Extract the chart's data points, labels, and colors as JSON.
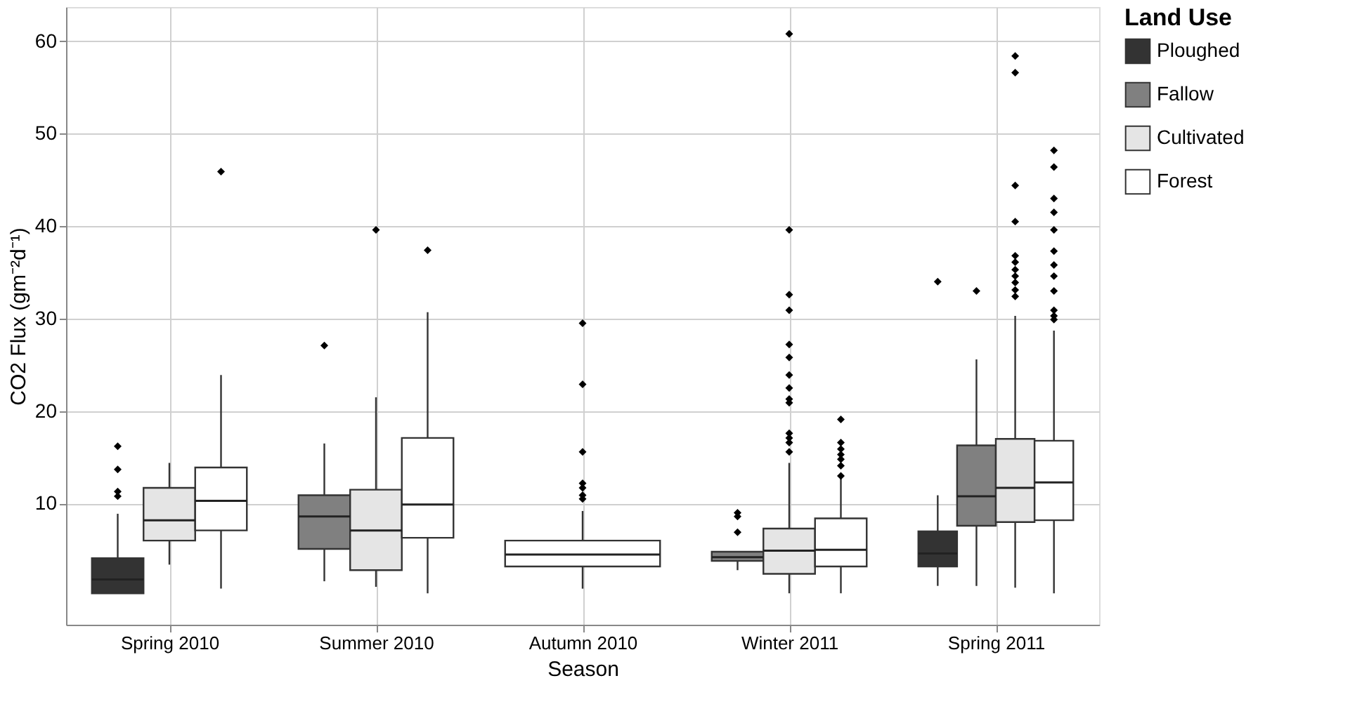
{
  "chart_data": {
    "type": "box",
    "xlabel": "Season",
    "ylabel": "CO2 Flux  (gm⁻²d⁻¹)",
    "legend_title": "Land Use",
    "legend": "right",
    "grid": true,
    "categories": [
      "Spring 2010",
      "Summer 2010",
      "Autumn 2010",
      "Winter 2011",
      "Spring 2011"
    ],
    "ylim": [
      -3.1,
      63.7
    ],
    "yticks": [
      10,
      20,
      30,
      40,
      50,
      60
    ],
    "series": [
      {
        "name": "Ploughed",
        "color": "#333333",
        "boxes": [
          {
            "low": 0.3,
            "q1": 0.3,
            "median": 1.8,
            "q3": 4.1,
            "high": 8.9,
            "outliers": [
              16.2,
              13.7,
              11.3,
              10.8
            ]
          },
          null,
          null,
          null,
          {
            "low": 1.1,
            "q1": 3.2,
            "median": 4.6,
            "q3": 7.0,
            "high": 10.9,
            "outliers": [
              34.0
            ]
          }
        ]
      },
      {
        "name": "Fallow",
        "color": "#808080",
        "boxes": [
          null,
          {
            "low": 1.6,
            "q1": 5.1,
            "median": 8.6,
            "q3": 10.9,
            "high": 16.5,
            "outliers": [
              27.1
            ]
          },
          null,
          {
            "low": 2.8,
            "q1": 3.8,
            "median": 4.2,
            "q3": 4.8,
            "high": 4.8,
            "outliers": [
              9.0,
              8.6,
              6.9
            ]
          },
          {
            "low": 1.1,
            "q1": 7.6,
            "median": 10.8,
            "q3": 16.3,
            "high": 25.6,
            "outliers": [
              33.0
            ]
          }
        ]
      },
      {
        "name": "Cultivated",
        "color": "#e5e5e5",
        "boxes": [
          {
            "low": 3.4,
            "q1": 6.0,
            "median": 8.2,
            "q3": 11.7,
            "high": 14.4
          },
          {
            "low": 1.0,
            "q1": 2.8,
            "median": 7.1,
            "q3": 11.5,
            "high": 21.5,
            "outliers": [
              39.6
            ]
          },
          null,
          {
            "low": 0.3,
            "q1": 2.4,
            "median": 4.9,
            "q3": 7.3,
            "high": 14.4,
            "outliers": [
              60.8,
              39.6,
              32.6,
              30.9,
              27.2,
              25.8,
              23.9,
              22.5,
              21.3,
              20.9,
              17.6,
              17.1,
              16.6,
              15.6
            ]
          },
          {
            "low": 0.9,
            "q1": 8.0,
            "median": 11.7,
            "q3": 17.0,
            "high": 30.3,
            "outliers": [
              58.4,
              56.6,
              44.4,
              40.5,
              36.8,
              36.1,
              35.3,
              34.6,
              33.9,
              33.1,
              32.4
            ]
          }
        ]
      },
      {
        "name": "Forest",
        "color": "#ffffff",
        "boxes": [
          {
            "low": 0.8,
            "q1": 7.1,
            "median": 10.3,
            "q3": 13.9,
            "high": 23.9,
            "outliers": [
              45.9
            ]
          },
          {
            "low": 0.3,
            "q1": 6.3,
            "median": 9.9,
            "q3": 17.1,
            "high": 30.7,
            "outliers": [
              37.4
            ]
          },
          {
            "low": 0.8,
            "q1": 3.2,
            "median": 4.5,
            "q3": 6.0,
            "high": 9.2,
            "outliers": [
              29.5,
              22.9,
              15.6,
              12.2,
              11.7,
              10.9,
              10.5
            ]
          },
          {
            "low": 0.3,
            "q1": 3.2,
            "median": 5.0,
            "q3": 8.4,
            "high": 12.9,
            "outliers": [
              19.1,
              16.6,
              15.9,
              15.3,
              14.8,
              14.1,
              13.0
            ]
          },
          {
            "low": 0.3,
            "q1": 8.2,
            "median": 12.3,
            "q3": 16.8,
            "high": 28.7,
            "outliers": [
              48.2,
              46.4,
              43.0,
              41.5,
              39.6,
              37.3,
              35.8,
              34.6,
              33.0,
              30.9,
              30.3,
              29.9
            ]
          }
        ]
      }
    ]
  }
}
